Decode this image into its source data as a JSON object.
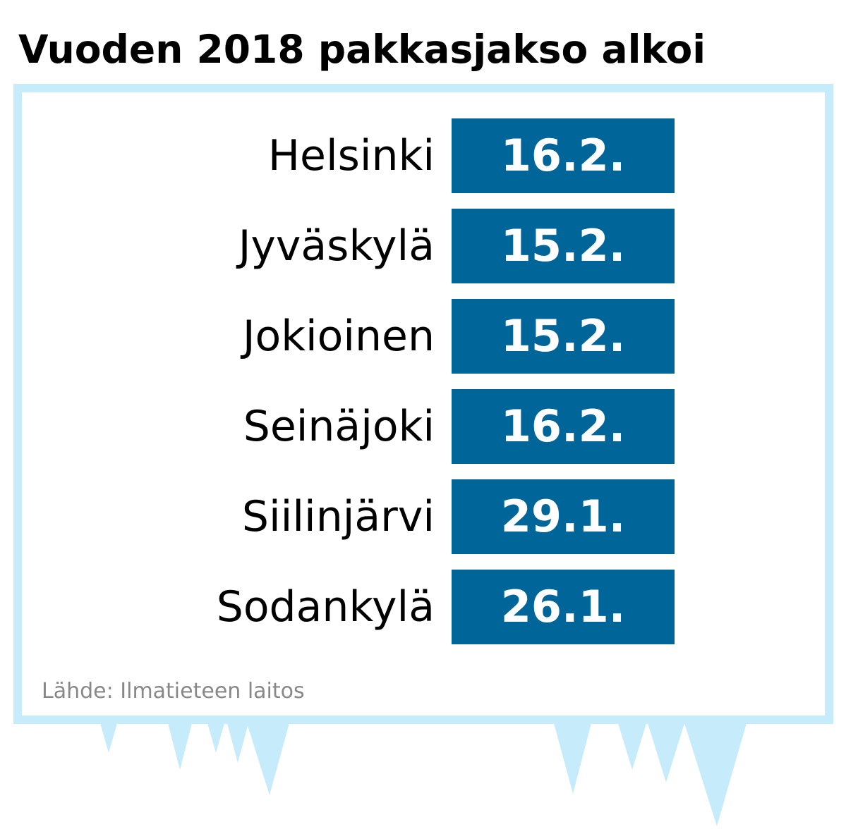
{
  "title": "Vuoden 2018 pakkasjakso alkoi",
  "chart_data": {
    "type": "table",
    "title": "Vuoden 2018 pakkasjakso alkoi",
    "rows": [
      {
        "label": "Helsinki",
        "value": "16.2."
      },
      {
        "label": "Jyväskylä",
        "value": "15.2."
      },
      {
        "label": "Jokioinen",
        "value": "15.2."
      },
      {
        "label": "Seinäjoki",
        "value": "16.2."
      },
      {
        "label": "Siilinjärvi",
        "value": "29.1."
      },
      {
        "label": "Sodankylä",
        "value": "26.1."
      }
    ],
    "source": "Lähde: Ilmatieteen laitos"
  },
  "colors": {
    "box": "#006699",
    "frame": "#c6ebfb",
    "icicles": "#c6ebfb",
    "source_text": "#888888"
  }
}
